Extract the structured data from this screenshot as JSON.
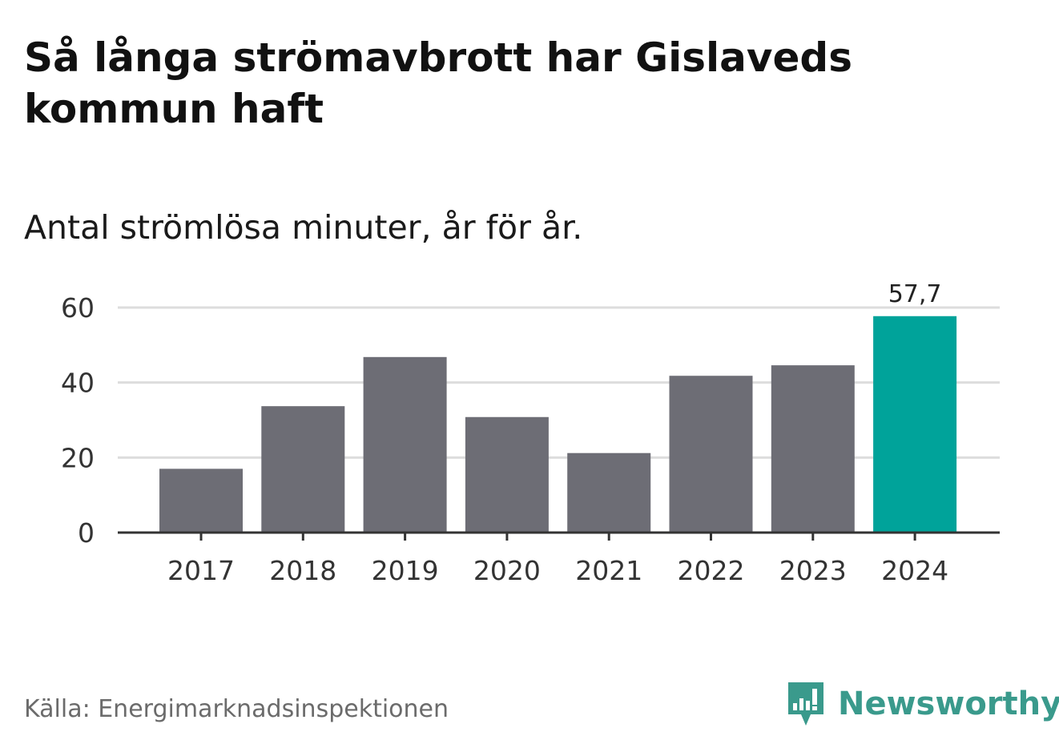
{
  "title": "Så långa strömavbrott har Gislaveds kommun haft",
  "subtitle": "Antal strömlösa minuter, år för år.",
  "source": "Källa: Energimarknadsinspektionen",
  "brand": {
    "name": "Newsworthy",
    "icon": "newsworthy-logo-icon",
    "color": "#3a9a8c"
  },
  "colors": {
    "bar": "#6d6d75",
    "highlight": "#00a39a",
    "grid": "#dddddd",
    "axis": "#333333"
  },
  "chart_data": {
    "type": "bar",
    "title": "Så långa strömavbrott har Gislaveds kommun haft",
    "subtitle": "Antal strömlösa minuter, år för år.",
    "xlabel": "",
    "ylabel": "",
    "categories": [
      "2017",
      "2018",
      "2019",
      "2020",
      "2021",
      "2022",
      "2023",
      "2024"
    ],
    "values": [
      17,
      33.7,
      46.8,
      30.8,
      21.2,
      41.8,
      44.6,
      57.7
    ],
    "highlight_index": 7,
    "data_labels": [
      {
        "index": 7,
        "text": "57,7"
      }
    ],
    "ylim": [
      0,
      60
    ],
    "yticks": [
      0,
      20,
      40,
      60
    ],
    "grid": true,
    "legend": "none"
  }
}
